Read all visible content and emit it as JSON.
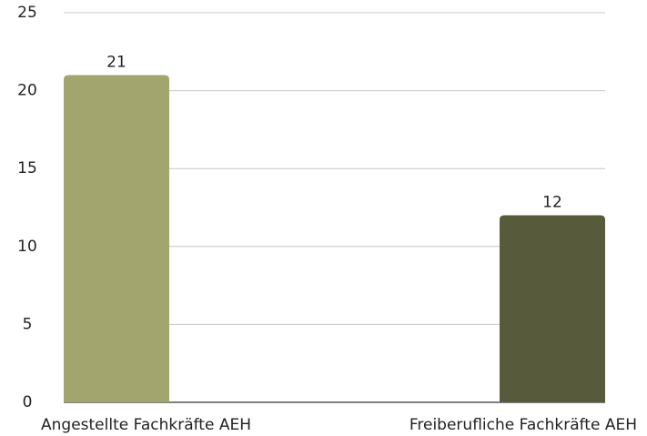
{
  "chart_data": {
    "type": "bar",
    "categories": [
      "Angestellte Fachkräfte AEH",
      "Freiberufliche Fachkräfte AEH"
    ],
    "values": [
      21,
      12
    ],
    "colors": [
      "#a3a56f",
      "#585a3c"
    ],
    "ylim": [
      0,
      25
    ],
    "yticks": [
      0,
      5,
      10,
      15,
      20,
      25
    ],
    "grid": true
  }
}
